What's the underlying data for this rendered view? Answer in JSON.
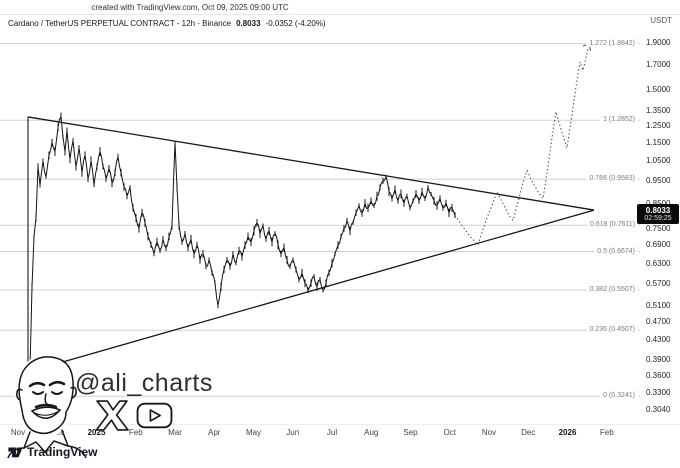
{
  "header": {
    "created_note": "created with TradingView.com, Oct 09, 2025 09:00 UTC",
    "symbol_line": "Cardano / TetherUS PERPETUAL CONTRACT - 12h - Binance",
    "last_price": "0.8033",
    "change": "-0.0352 (-4.20%)",
    "quote_currency": "USDT"
  },
  "price_badge": {
    "price": "0.8033",
    "countdown": "02:59:25"
  },
  "watermark": {
    "handle": "@ali_charts"
  },
  "footer": {
    "brand": "TradingView"
  },
  "chart_data": {
    "type": "line",
    "title": "Cardano / TetherUS PERPETUAL CONTRACT",
    "interval": "12h",
    "exchange": "Binance",
    "scale": "log",
    "ylim": [
      0.304,
      1.9
    ],
    "y_axis": [
      1.9,
      1.7,
      1.5,
      1.35,
      1.25,
      1.15,
      1.05,
      0.95,
      0.85,
      0.75,
      0.69,
      0.63,
      0.57,
      0.51,
      0.47,
      0.43,
      0.39,
      0.36,
      0.33,
      0.304
    ],
    "x_axis": [
      {
        "label": "Nov"
      },
      {
        "label": "Dec"
      },
      {
        "label": "2025",
        "bold": true
      },
      {
        "label": "Feb"
      },
      {
        "label": "Mar"
      },
      {
        "label": "Apr"
      },
      {
        "label": "May"
      },
      {
        "label": "Jun"
      },
      {
        "label": "Jul"
      },
      {
        "label": "Aug"
      },
      {
        "label": "Sep"
      },
      {
        "label": "Oct"
      },
      {
        "label": "Nov"
      },
      {
        "label": "Dec"
      },
      {
        "label": "2026",
        "bold": true
      },
      {
        "label": "Feb"
      }
    ],
    "fib_levels": [
      {
        "ratio": "1.272",
        "price": 1.8842
      },
      {
        "ratio": "1",
        "price": 1.2852
      },
      {
        "ratio": "0.786",
        "price": 0.9583
      },
      {
        "ratio": "0.618",
        "price": 0.7611
      },
      {
        "ratio": "0.5",
        "price": 0.6674
      },
      {
        "ratio": "0.382",
        "price": 0.5507
      },
      {
        "ratio": "0.236",
        "price": 0.4507
      },
      {
        "ratio": "0",
        "price": 0.3241
      }
    ],
    "triangle": {
      "upper_start": [
        28,
        1.307
      ],
      "lower_start": [
        28,
        0.366
      ],
      "apex": [
        594,
        0.821
      ]
    },
    "price_path": [
      [
        30,
        0.37
      ],
      [
        32,
        0.56
      ],
      [
        34,
        0.72
      ],
      [
        36,
        0.79
      ],
      [
        38,
        1.02
      ],
      [
        40,
        0.93
      ],
      [
        43,
        1.05
      ],
      [
        46,
        0.97
      ],
      [
        49,
        1.08
      ],
      [
        52,
        1.15
      ],
      [
        55,
        1.1
      ],
      [
        58,
        1.24
      ],
      [
        61,
        1.31
      ],
      [
        63,
        1.18
      ],
      [
        65,
        1.1
      ],
      [
        67,
        1.22
      ],
      [
        70,
        1.06
      ],
      [
        73,
        1.16
      ],
      [
        76,
        1.02
      ],
      [
        79,
        1.12
      ],
      [
        82,
        0.99
      ],
      [
        85,
        1.08
      ],
      [
        88,
        0.96
      ],
      [
        91,
        1.05
      ],
      [
        94,
        0.93
      ],
      [
        97,
        1.02
      ],
      [
        100,
        1.1
      ],
      [
        103,
        1.02
      ],
      [
        106,
        0.96
      ],
      [
        109,
        1.01
      ],
      [
        112,
        0.94
      ],
      [
        115,
        0.99
      ],
      [
        118,
        1.07
      ],
      [
        121,
        0.99
      ],
      [
        124,
        0.92
      ],
      [
        127,
        0.88
      ],
      [
        130,
        0.92
      ],
      [
        133,
        0.83
      ],
      [
        136,
        0.79
      ],
      [
        139,
        0.75
      ],
      [
        142,
        0.81
      ],
      [
        145,
        0.77
      ],
      [
        148,
        0.72
      ],
      [
        151,
        0.69
      ],
      [
        154,
        0.66
      ],
      [
        157,
        0.7
      ],
      [
        160,
        0.67
      ],
      [
        163,
        0.71
      ],
      [
        166,
        0.68
      ],
      [
        169,
        0.72
      ],
      [
        172,
        0.76
      ],
      [
        175,
        1.15
      ],
      [
        177,
        0.92
      ],
      [
        179,
        0.76
      ],
      [
        182,
        0.7
      ],
      [
        185,
        0.73
      ],
      [
        188,
        0.68
      ],
      [
        191,
        0.71
      ],
      [
        194,
        0.66
      ],
      [
        197,
        0.69
      ],
      [
        200,
        0.64
      ],
      [
        203,
        0.66
      ],
      [
        206,
        0.62
      ],
      [
        209,
        0.64
      ],
      [
        212,
        0.6
      ],
      [
        215,
        0.57
      ],
      [
        218,
        0.51
      ],
      [
        221,
        0.56
      ],
      [
        224,
        0.61
      ],
      [
        227,
        0.64
      ],
      [
        230,
        0.62
      ],
      [
        233,
        0.66
      ],
      [
        236,
        0.63
      ],
      [
        239,
        0.67
      ],
      [
        242,
        0.65
      ],
      [
        245,
        0.69
      ],
      [
        248,
        0.72
      ],
      [
        251,
        0.7
      ],
      [
        254,
        0.74
      ],
      [
        257,
        0.77
      ],
      [
        260,
        0.73
      ],
      [
        263,
        0.76
      ],
      [
        266,
        0.71
      ],
      [
        269,
        0.74
      ],
      [
        272,
        0.7
      ],
      [
        275,
        0.73
      ],
      [
        278,
        0.69
      ],
      [
        281,
        0.66
      ],
      [
        284,
        0.68
      ],
      [
        287,
        0.64
      ],
      [
        290,
        0.62
      ],
      [
        293,
        0.64
      ],
      [
        296,
        0.61
      ],
      [
        299,
        0.58
      ],
      [
        302,
        0.6
      ],
      [
        305,
        0.57
      ],
      [
        308,
        0.55
      ],
      [
        311,
        0.57
      ],
      [
        314,
        0.59
      ],
      [
        317,
        0.56
      ],
      [
        320,
        0.58
      ],
      [
        323,
        0.55
      ],
      [
        326,
        0.57
      ],
      [
        329,
        0.6
      ],
      [
        332,
        0.63
      ],
      [
        335,
        0.66
      ],
      [
        338,
        0.69
      ],
      [
        341,
        0.72
      ],
      [
        344,
        0.75
      ],
      [
        347,
        0.78
      ],
      [
        350,
        0.74
      ],
      [
        353,
        0.77
      ],
      [
        356,
        0.81
      ],
      [
        359,
        0.84
      ],
      [
        362,
        0.81
      ],
      [
        365,
        0.85
      ],
      [
        368,
        0.83
      ],
      [
        371,
        0.86
      ],
      [
        374,
        0.84
      ],
      [
        377,
        0.88
      ],
      [
        380,
        0.92
      ],
      [
        383,
        0.95
      ],
      [
        386,
        0.97
      ],
      [
        389,
        0.9
      ],
      [
        392,
        0.87
      ],
      [
        395,
        0.91
      ],
      [
        398,
        0.86
      ],
      [
        401,
        0.89
      ],
      [
        404,
        0.85
      ],
      [
        407,
        0.88
      ],
      [
        410,
        0.83
      ],
      [
        413,
        0.86
      ],
      [
        416,
        0.89
      ],
      [
        419,
        0.86
      ],
      [
        422,
        0.9
      ],
      [
        425,
        0.87
      ],
      [
        428,
        0.92
      ],
      [
        431,
        0.89
      ],
      [
        434,
        0.86
      ],
      [
        437,
        0.84
      ],
      [
        440,
        0.87
      ],
      [
        443,
        0.83
      ],
      [
        446,
        0.85
      ],
      [
        449,
        0.81
      ],
      [
        452,
        0.83
      ],
      [
        455,
        0.8
      ]
    ],
    "projection_path": [
      [
        455,
        0.8
      ],
      [
        462,
        0.76
      ],
      [
        470,
        0.72
      ],
      [
        478,
        0.69
      ],
      [
        486,
        0.78
      ],
      [
        492,
        0.84
      ],
      [
        497,
        0.9
      ],
      [
        504,
        0.84
      ],
      [
        509,
        0.8
      ],
      [
        513,
        0.78
      ],
      [
        519,
        0.87
      ],
      [
        523,
        0.94
      ],
      [
        527,
        1.0
      ],
      [
        533,
        0.94
      ],
      [
        538,
        0.9
      ],
      [
        543,
        0.87
      ],
      [
        548,
        1.02
      ],
      [
        552,
        1.18
      ],
      [
        556,
        1.34
      ],
      [
        560,
        1.25
      ],
      [
        564,
        1.17
      ],
      [
        567,
        1.12
      ],
      [
        572,
        1.32
      ],
      [
        576,
        1.52
      ],
      [
        580,
        1.72
      ],
      [
        583,
        1.65
      ],
      [
        586,
        1.76
      ],
      [
        589,
        1.884
      ]
    ]
  }
}
